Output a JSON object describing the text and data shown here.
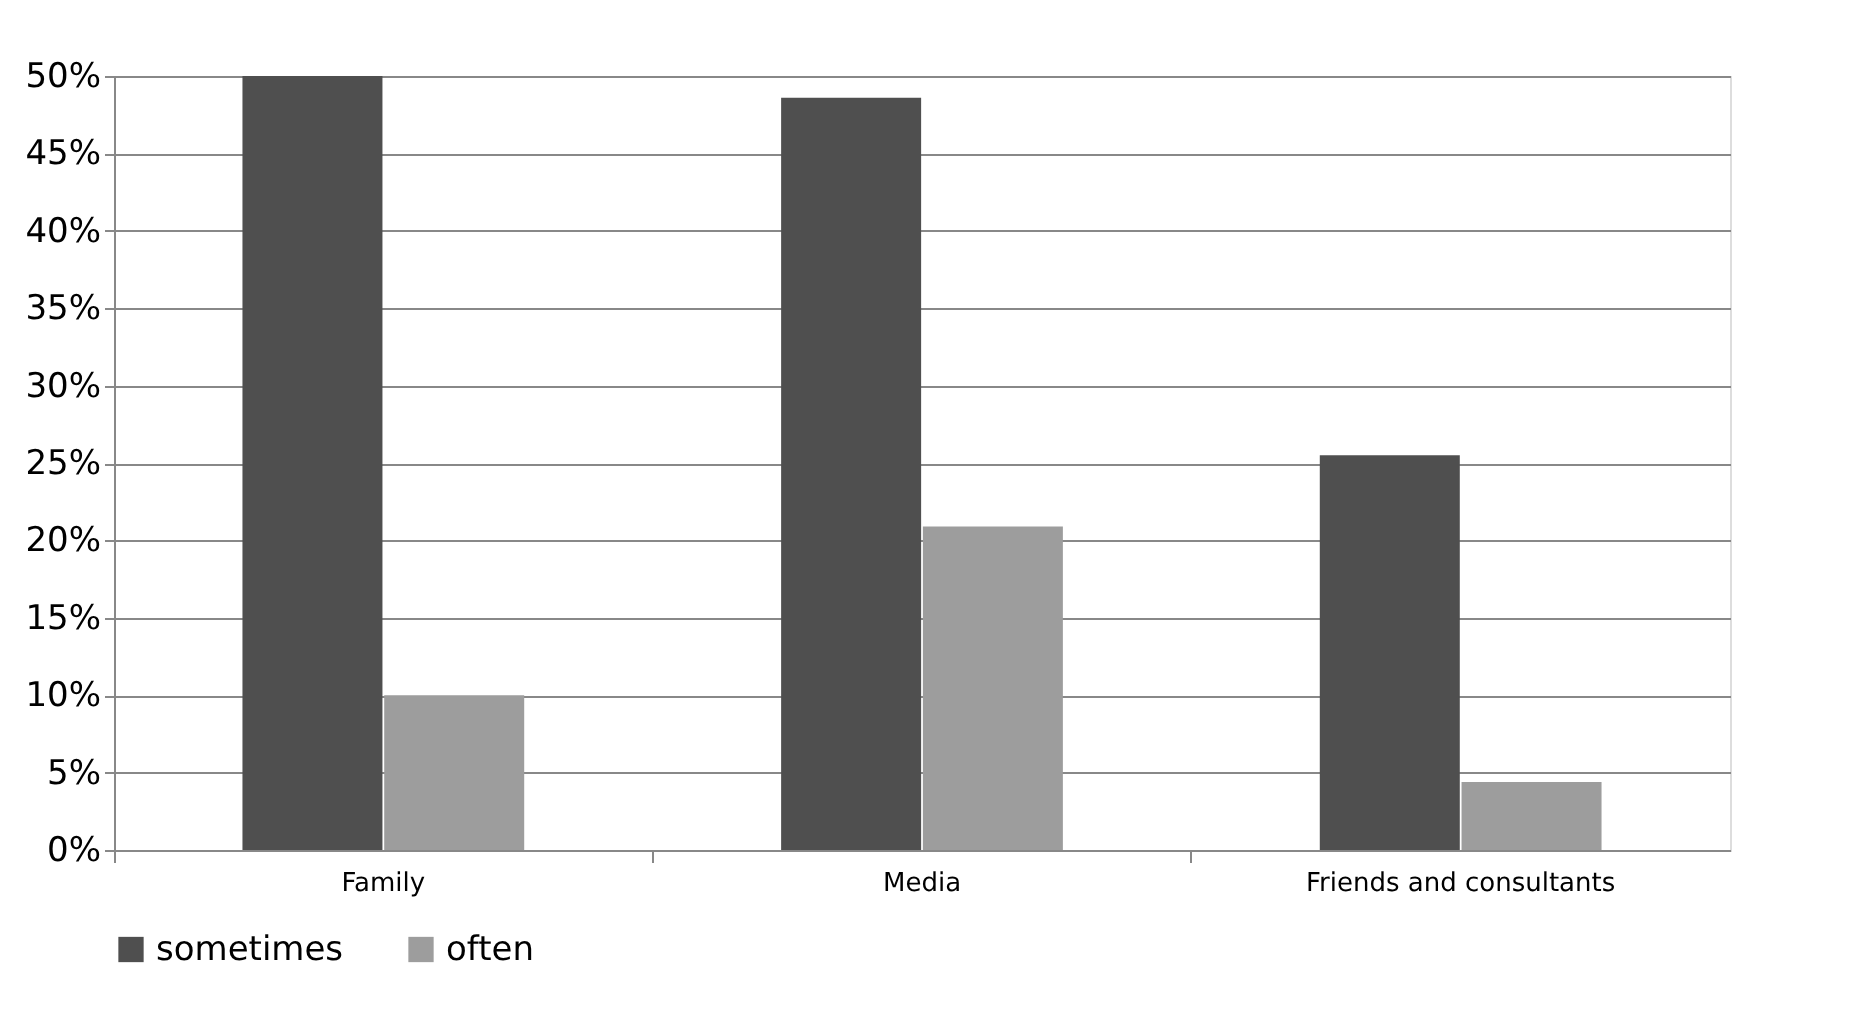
{
  "chart_data": {
    "type": "bar",
    "categories": [
      "Family",
      "Media",
      "Friends and consultants"
    ],
    "series": [
      {
        "name": "sometimes",
        "color": "#4f4f4f",
        "values": [
          50,
          48.6,
          25.5
        ]
      },
      {
        "name": "often",
        "color": "#9d9d9d",
        "values": [
          10,
          20.9,
          4.4
        ]
      }
    ],
    "ylim": [
      0,
      50
    ],
    "yticks": [
      {
        "value": 0,
        "label": "0%"
      },
      {
        "value": 5,
        "label": "5%"
      },
      {
        "value": 10,
        "label": "10%"
      },
      {
        "value": 15,
        "label": "15%"
      },
      {
        "value": 20,
        "label": "20%"
      },
      {
        "value": 25,
        "label": "25%"
      },
      {
        "value": 30,
        "label": "30%"
      },
      {
        "value": 35,
        "label": "35%"
      },
      {
        "value": 40,
        "label": "40%"
      },
      {
        "value": 45,
        "label": "45%"
      },
      {
        "value": 50,
        "label": "50%"
      }
    ],
    "grid": "y",
    "legend": "bottom"
  }
}
